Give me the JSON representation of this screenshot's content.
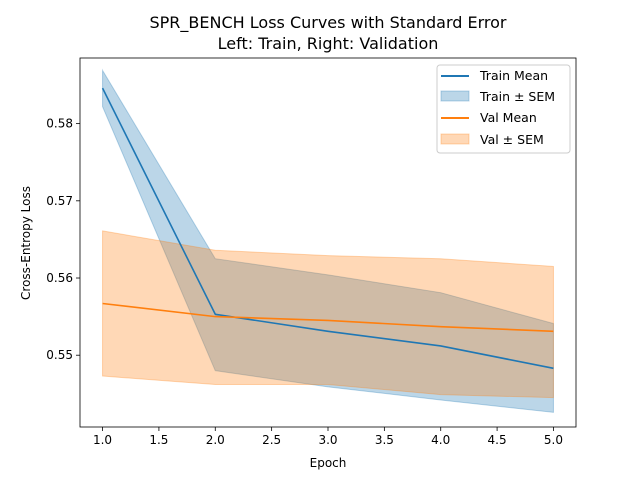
{
  "chart_data": {
    "type": "line",
    "title": "SPR_BENCH Loss Curves with Standard Error",
    "subtitle": "Left: Train, Right: Validation",
    "xlabel": "Epoch",
    "ylabel": "Cross-Entropy Loss",
    "x": [
      1,
      2,
      3,
      4,
      5
    ],
    "xlim": [
      0.8,
      5.2
    ],
    "ylim": [
      0.5407,
      0.5885
    ],
    "xticks": [
      1.0,
      1.5,
      2.0,
      2.5,
      3.0,
      3.5,
      4.0,
      4.5,
      5.0
    ],
    "yticks": [
      0.55,
      0.56,
      0.57,
      0.58
    ],
    "xtick_labels": [
      "1.0",
      "1.5",
      "2.0",
      "2.5",
      "3.0",
      "3.5",
      "4.0",
      "4.5",
      "5.0"
    ],
    "ytick_labels": [
      "0.55",
      "0.56",
      "0.57",
      "0.58"
    ],
    "grid": false,
    "legend_position": "top-right",
    "series": [
      {
        "name": "Train Mean",
        "kind": "line",
        "color": "#1f77b4",
        "values": [
          0.5846,
          0.5553,
          0.5531,
          0.5512,
          0.5483
        ]
      },
      {
        "name": "Val Mean",
        "kind": "line",
        "color": "#ff7f0e",
        "values": [
          0.5567,
          0.555,
          0.5545,
          0.5537,
          0.5531
        ]
      }
    ],
    "bands": [
      {
        "name": "Train ± SEM",
        "color": "#1f77b4",
        "opacity": 0.3,
        "lower": [
          0.5822,
          0.548,
          0.5459,
          0.5442,
          0.5426
        ],
        "upper": [
          0.5869,
          0.5625,
          0.5604,
          0.5581,
          0.5541
        ]
      },
      {
        "name": "Val ± SEM",
        "color": "#ff7f0e",
        "opacity": 0.3,
        "lower": [
          0.5473,
          0.5462,
          0.5462,
          0.5449,
          0.5445
        ],
        "upper": [
          0.5661,
          0.5636,
          0.5629,
          0.5625,
          0.5615
        ]
      }
    ],
    "legend": [
      "Train Mean",
      "Train ± SEM",
      "Val Mean",
      "Val ± SEM"
    ]
  }
}
